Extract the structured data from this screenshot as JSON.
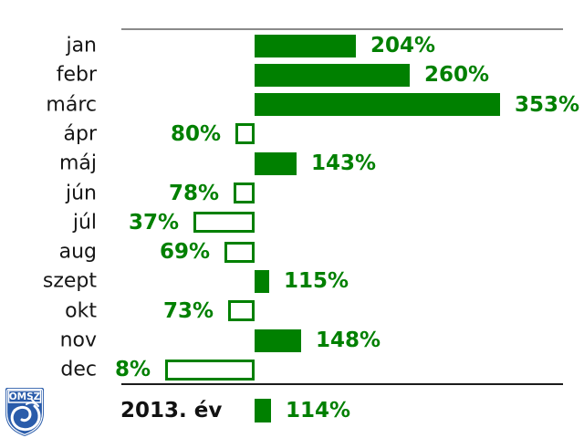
{
  "chart_data": {
    "type": "bar",
    "orientation": "horizontal",
    "title": "",
    "categories": [
      "jan",
      "febr",
      "márc",
      "ápr",
      "máj",
      "jún",
      "júl",
      "aug",
      "szept",
      "okt",
      "nov",
      "dec"
    ],
    "values": [
      204,
      260,
      353,
      80,
      143,
      78,
      37,
      69,
      115,
      73,
      148,
      8
    ],
    "value_labels": [
      "204%",
      "260%",
      "353%",
      "80%",
      "143%",
      "78%",
      "37%",
      "69%",
      "115%",
      "73%",
      "148%",
      "8%"
    ],
    "unit": "%",
    "baseline": 100,
    "bar_rule": "bars anchored at 100%; values >= 100% drawn as solid green bars extending right, values < 100% drawn as white bars with green outline extending left; label on outer end of each bar",
    "bar_style": {
      "fill_color": "#008000",
      "outline_color": "#008000",
      "empty_fill": "#ffffff",
      "label_color": "#008000"
    },
    "legend": {
      "label": "2013. év",
      "value": "114%",
      "value_number": 114,
      "position": "bottom"
    },
    "axis": {
      "gridlines": false,
      "top_rule_color": "#8a8a8a",
      "bottom_rule_color": "#1c1c1c"
    }
  },
  "logo": {
    "text": "OMSZ",
    "shield_color": "#2a5caa",
    "text_color": "#ffffff"
  }
}
